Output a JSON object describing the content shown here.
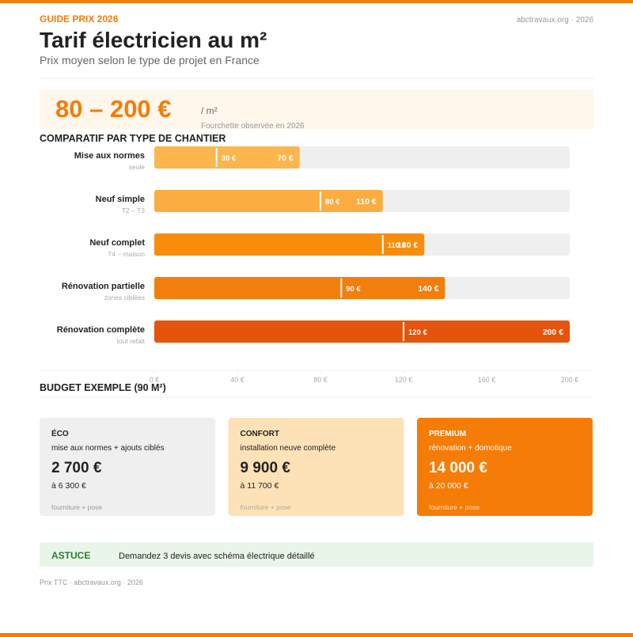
{
  "header": {
    "kicker": "GUIDE PRIX 2026",
    "source": "abctravaux.org · 2026",
    "title": "Tarif électricien au m²",
    "subtitle": "Prix moyen selon le type de projet en France"
  },
  "hero": {
    "range": "80 – 200 €",
    "unit": "/ m²",
    "note": "Fourchette observée en 2026"
  },
  "chart_data": {
    "type": "range-bar",
    "title": "COMPARATIF PAR TYPE DE CHANTIER",
    "categories": [
      "Mise aux normes",
      "Neuf simple",
      "Neuf complet",
      "Rénovation partielle",
      "Rénovation complète"
    ],
    "sublabels": [
      "seule",
      "T2 – T3",
      "T4 – maison",
      "zones ciblées",
      "tout refait"
    ],
    "low_values": [
      30,
      80,
      110,
      90,
      120
    ],
    "low_value_labels": [
      "30 €",
      "80 €",
      "110 €",
      "90 €",
      "120 €"
    ],
    "high_values": [
      70,
      110,
      130,
      140,
      200
    ],
    "high_value_labels": [
      "70 €",
      "110 €",
      "130 €",
      "140 €",
      "200 €"
    ],
    "colors": [
      "#fdb54e",
      "#fbad42",
      "#f88d0c",
      "#f27f0b",
      "#e4540c"
    ],
    "xlim": [
      0,
      200
    ],
    "xticks": [
      {
        "value": 0,
        "label": "0 €"
      },
      {
        "value": 40,
        "label": "40 €"
      },
      {
        "value": 80,
        "label": "80 €"
      },
      {
        "value": 120,
        "label": "120 €"
      },
      {
        "value": 160,
        "label": "160 €"
      },
      {
        "value": 200,
        "label": "200 €"
      }
    ]
  },
  "budget": {
    "title": "BUDGET EXEMPLE (90 M²)",
    "cards": [
      {
        "label": "ÉCO",
        "desc": "mise aux normes + ajouts ciblés",
        "price": "2 700 €",
        "upper": "à 6 300 €",
        "foot": "fourniture + pose"
      },
      {
        "label": "CONFORT",
        "desc": "installation neuve complète",
        "price": "9 900 €",
        "upper": "à 11 700 €",
        "foot": "fourniture + pose"
      },
      {
        "label": "PREMIUM",
        "desc": "rénovation + domotique",
        "price": "14 000 €",
        "upper": "à 20 000 €",
        "foot": "fourniture + pose"
      }
    ]
  },
  "tip": {
    "label": "ASTUCE",
    "text": "Demandez 3 devis avec schéma électrique détaillé"
  },
  "footer": {
    "text": "Prix TTC · abctravaux.org · 2026"
  }
}
